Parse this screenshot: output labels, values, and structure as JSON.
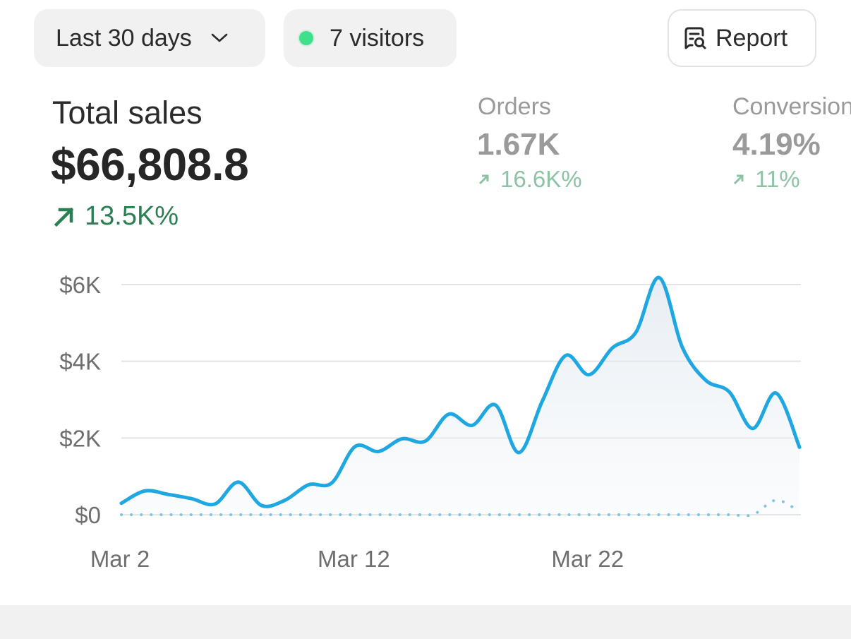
{
  "toolbar": {
    "date_range_label": "Last 30 days",
    "visitors_label": "7 visitors",
    "report_label": "Report"
  },
  "metrics": {
    "total_sales": {
      "label": "Total sales",
      "value": "$66,808.8",
      "change": "13.5K%"
    },
    "orders": {
      "label": "Orders",
      "value": "1.67K",
      "change": "16.6K%"
    },
    "conversion": {
      "label": "Conversion",
      "value": "4.19%",
      "change": "11%"
    }
  },
  "colors": {
    "line": "#1ea7e1",
    "positive": "#2a7f52",
    "positive_faded": "#8dc3a4",
    "visitor_dot": "#3fe08c",
    "grid": "#e3e3e3"
  },
  "chart_data": {
    "type": "line",
    "y_ticks": [
      "$0",
      "$2K",
      "$4K",
      "$6K"
    ],
    "y_tick_values": [
      0,
      2000,
      4000,
      6000
    ],
    "x_ticks": [
      "Mar 2",
      "Mar 12",
      "Mar 22"
    ],
    "x_tick_days": [
      2,
      12,
      22
    ],
    "ylim": [
      0,
      6000
    ],
    "grid": true,
    "series": [
      {
        "style": "solid",
        "x": [
          2,
          3,
          4,
          5,
          6,
          7,
          8,
          9,
          10,
          11,
          12,
          13,
          14,
          15,
          16,
          17,
          18,
          19,
          20,
          21,
          22,
          23,
          24,
          25,
          26,
          27,
          28,
          29,
          30,
          31
        ],
        "values": [
          300,
          620,
          530,
          420,
          280,
          850,
          240,
          380,
          780,
          830,
          1780,
          1650,
          1980,
          1920,
          2620,
          2330,
          2860,
          1620,
          2960,
          4150,
          3650,
          4350,
          4750,
          6180,
          4350,
          3500,
          3200,
          2250,
          3170,
          1760
        ]
      },
      {
        "style": "dotted",
        "x": [
          2,
          3,
          4,
          5,
          6,
          7,
          8,
          9,
          10,
          11,
          12,
          13,
          14,
          15,
          16,
          17,
          18,
          19,
          20,
          21,
          22,
          23,
          24,
          25,
          26,
          27,
          28,
          29,
          30,
          31
        ],
        "values": [
          0,
          0,
          0,
          0,
          0,
          0,
          0,
          0,
          0,
          0,
          0,
          0,
          0,
          0,
          0,
          0,
          0,
          0,
          0,
          0,
          0,
          0,
          0,
          0,
          0,
          0,
          0,
          0,
          380,
          80
        ]
      }
    ]
  }
}
